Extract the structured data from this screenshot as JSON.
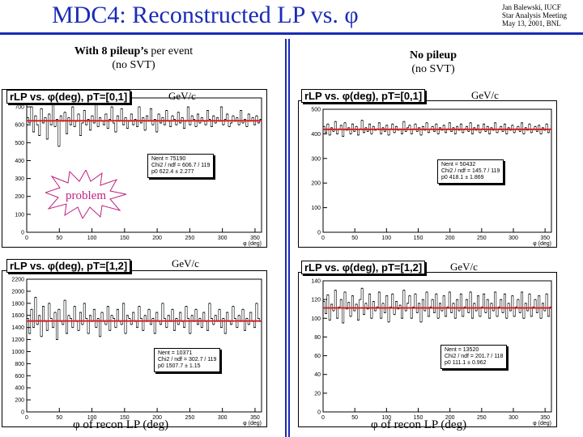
{
  "header": {
    "title": "MDC4:  Reconstructed  LP vs.  φ",
    "meta": "Jan Balewski, IUCF\nStar Analysis Meeting\nMay 13, 2001, BNL"
  },
  "left_heading": {
    "bold": "With 8 pileup’s",
    "rest": " per event",
    "line2": "(no SVT)"
  },
  "right_heading": {
    "bold": "No pileup",
    "line2": "(no SVT)"
  },
  "problem_label": "problem",
  "unit_label": "GeV/c",
  "x_label": "φ of recon LP  (deg)",
  "accent_color": "#1a2bb5",
  "fit_color": "#d62020",
  "chart_data": [
    {
      "type": "bar",
      "title": "rLP vs. φ(deg), pT=[0,1]",
      "xlabel": "φ (deg)",
      "ylim": [
        0,
        750
      ],
      "yticks": [
        0,
        100,
        200,
        300,
        400,
        500,
        600,
        700
      ],
      "xticks": [
        0,
        50,
        100,
        150,
        200,
        250,
        300,
        350
      ],
      "fit": 622.4,
      "stats": [
        "Nent = 75190",
        "Chi2 / ndf = 606.7 / 119",
        "p0     622.4 ± 2.277"
      ],
      "values": [
        640,
        610,
        700,
        560,
        650,
        600,
        540,
        690,
        610,
        640,
        520,
        660,
        600,
        720,
        590,
        630,
        480,
        650,
        620,
        670,
        550,
        640,
        600,
        700,
        590,
        620,
        660,
        540,
        610,
        680,
        600,
        630,
        570,
        650,
        610,
        720,
        590,
        640,
        620,
        600,
        660,
        580,
        630,
        700,
        610,
        560,
        650,
        620,
        690,
        600,
        640,
        580,
        620,
        660,
        600,
        630,
        590,
        700,
        610,
        640,
        570,
        650,
        620,
        690,
        600,
        630,
        560,
        660,
        610,
        640,
        600,
        680,
        620,
        590,
        650,
        630,
        600,
        670,
        610,
        640,
        580,
        620,
        700,
        600,
        650,
        630,
        590,
        660,
        610,
        640,
        620,
        600,
        680,
        630,
        590,
        650,
        610,
        640,
        620,
        700,
        600,
        630,
        660,
        590,
        610,
        650,
        620,
        640,
        600,
        680,
        610,
        630,
        590,
        660,
        620,
        640,
        600,
        650,
        610,
        630
      ]
    },
    {
      "type": "bar",
      "title": "rLP vs. φ(deg), pT=[0,1]",
      "xlabel": "φ (deg)",
      "ylim": [
        0,
        500
      ],
      "yticks": [
        0,
        100,
        200,
        300,
        400,
        500
      ],
      "xticks": [
        0,
        50,
        100,
        150,
        200,
        250,
        300,
        350
      ],
      "fit": 418.1,
      "stats": [
        "Nent = 50432",
        "Chi2 / ndf = 145.7 / 119",
        "p0     418.1 ± 1.869"
      ],
      "values": [
        430,
        405,
        440,
        395,
        425,
        410,
        450,
        400,
        420,
        435,
        390,
        445,
        415,
        425,
        400,
        440,
        410,
        430,
        395,
        420,
        455,
        405,
        425,
        410,
        440,
        400,
        430,
        415,
        420,
        445,
        400,
        425,
        410,
        435,
        395,
        420,
        440,
        405,
        430,
        415,
        420,
        400,
        450,
        410,
        425,
        435,
        400,
        420,
        440,
        410,
        425,
        395,
        430,
        415,
        445,
        405,
        420,
        430,
        410,
        440,
        400,
        425,
        415,
        435,
        405,
        420,
        445,
        410,
        425,
        400,
        430,
        415,
        440,
        405,
        420,
        430,
        410,
        445,
        400,
        425,
        415,
        435,
        405,
        420,
        440,
        410,
        430,
        400,
        425,
        415,
        445,
        405,
        420,
        430,
        410,
        440,
        400,
        425,
        415,
        435,
        405,
        420,
        430,
        410,
        445,
        400,
        425,
        415,
        440,
        405,
        420,
        430,
        410,
        435,
        400,
        425,
        415,
        440,
        405,
        420
      ]
    },
    {
      "type": "bar",
      "title": "rLP vs. φ(deg), pT=[1,2]",
      "xlabel": "φ (deg)",
      "ylim": [
        0,
        2200
      ],
      "yticks": [
        0,
        200,
        400,
        600,
        800,
        1000,
        1200,
        1400,
        1600,
        1800,
        2000,
        2200
      ],
      "xticks": [
        0,
        50,
        100,
        150,
        200,
        250,
        300,
        350
      ],
      "fit": 1507.7,
      "stats": [
        "Nent = 10371",
        "Chi2 / ndf = 302.7 / 119",
        "p0     1507.7 ± 1.15"
      ],
      "values": [
        1550,
        1300,
        1700,
        1400,
        1900,
        1450,
        1600,
        1250,
        1750,
        1500,
        1350,
        1800,
        1550,
        1400,
        1650,
        1200,
        1700,
        1500,
        1450,
        1850,
        1300,
        1600,
        1550,
        1400,
        1750,
        1500,
        1350,
        1650,
        1450,
        1800,
        1550,
        1300,
        1600,
        1500,
        1700,
        1400,
        1550,
        1250,
        1650,
        1500,
        1450,
        1750,
        1350,
        1600,
        1550,
        1400,
        1700,
        1500,
        1450,
        1800,
        1300,
        1600,
        1550,
        1450,
        1650,
        1500,
        1400,
        1750,
        1550,
        1350,
        1600,
        1500,
        1700,
        1450,
        1550,
        1300,
        1650,
        1500,
        1450,
        1800,
        1550,
        1400,
        1600,
        1500,
        1700,
        1350,
        1550,
        1450,
        1650,
        1500,
        1400,
        1750,
        1550,
        1300,
        1600,
        1500,
        1700,
        1450,
        1550,
        1400,
        1650,
        1500,
        1350,
        1800,
        1550,
        1450,
        1600,
        1500,
        1700,
        1400,
        1550,
        1300,
        1650,
        1500,
        1450,
        1750,
        1550,
        1400,
        1600,
        1500,
        1700,
        1350,
        1550,
        1450,
        1650,
        1500,
        1400,
        1800,
        1550,
        1500
      ]
    },
    {
      "type": "bar",
      "title": "rLP vs. φ(deg), pT=[1,2]",
      "xlabel": "φ (deg)",
      "ylim": [
        0,
        140
      ],
      "yticks": [
        0,
        20,
        40,
        60,
        80,
        100,
        120,
        140
      ],
      "xticks": [
        0,
        50,
        100,
        150,
        200,
        250,
        300,
        350
      ],
      "fit": 111.1,
      "stats": [
        "Nent = 13520",
        "Chi2 / ndf = 201.7 / 118",
        "p0     111.1 ± 0.962"
      ],
      "values": [
        118,
        105,
        125,
        98,
        115,
        108,
        130,
        100,
        112,
        120,
        95,
        128,
        110,
        117,
        102,
        124,
        108,
        115,
        98,
        120,
        132,
        104,
        116,
        110,
        126,
        100,
        118,
        108,
        112,
        128,
        100,
        116,
        106,
        124,
        96,
        112,
        126,
        104,
        118,
        110,
        114,
        100,
        130,
        108,
        116,
        124,
        100,
        112,
        126,
        106,
        116,
        96,
        120,
        108,
        128,
        102,
        112,
        120,
        106,
        126,
        100,
        116,
        108,
        124,
        102,
        112,
        128,
        106,
        116,
        100,
        120,
        108,
        126,
        102,
        112,
        120,
        106,
        128,
        100,
        116,
        108,
        124,
        102,
        112,
        126,
        106,
        120,
        100,
        116,
        108,
        128,
        102,
        112,
        120,
        106,
        126,
        100,
        116,
        108,
        124,
        102,
        112,
        120,
        106,
        128,
        100,
        116,
        108,
        126,
        102,
        112,
        120,
        106,
        124,
        100,
        116,
        108,
        126,
        102,
        112
      ]
    }
  ]
}
